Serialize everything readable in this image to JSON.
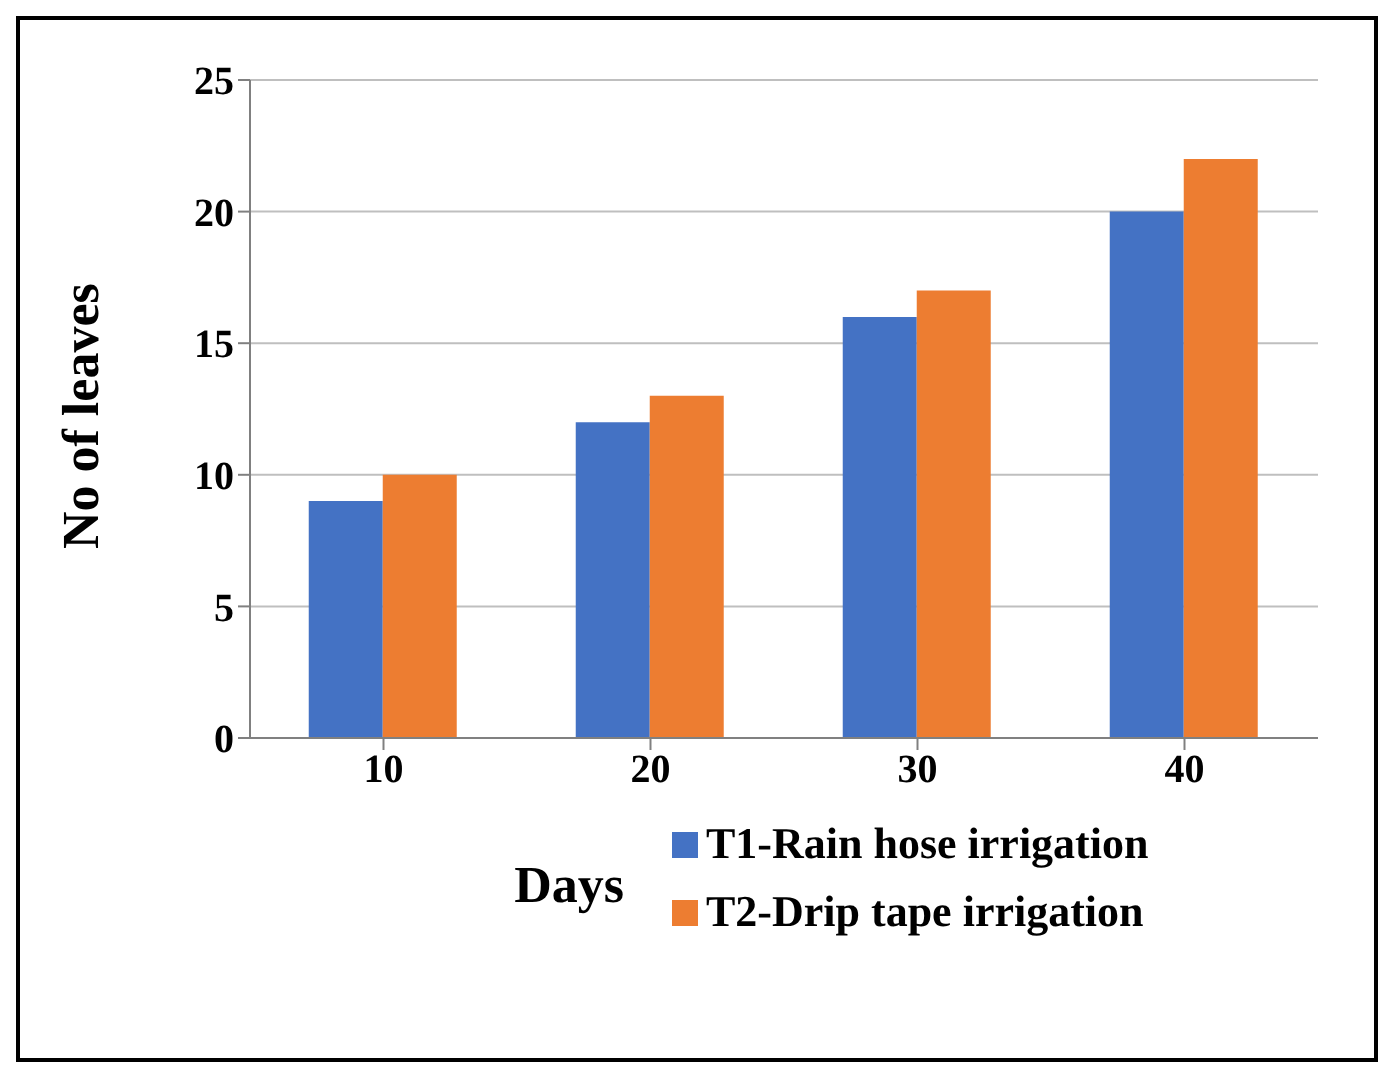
{
  "chart_data": {
    "type": "bar",
    "xlabel": "Days",
    "ylabel": "No of  leaves",
    "categories": [
      "10",
      "20",
      "30",
      "40"
    ],
    "series": [
      {
        "name": "T1-Rain hose irrigation",
        "color": "#4472c4",
        "values": [
          9,
          12,
          16,
          20
        ]
      },
      {
        "name": "T2-Drip tape irrigation",
        "color": "#ed7d31",
        "values": [
          10,
          13,
          17,
          22
        ]
      }
    ],
    "ylim": [
      0,
      25
    ],
    "yticks": [
      0,
      5,
      10,
      15,
      20,
      25
    ],
    "grid": "y",
    "legend": "bottom"
  }
}
